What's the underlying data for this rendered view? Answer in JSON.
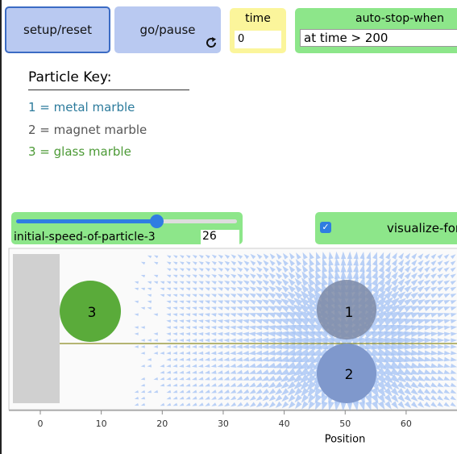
{
  "buttons": {
    "setup": "setup/reset",
    "go": "go/pause"
  },
  "time_monitor": {
    "label": "time",
    "value": "0"
  },
  "auto_stop": {
    "label": "auto-stop-when",
    "value": "at time > 200"
  },
  "particle_key": {
    "title": "Particle Key:",
    "items": [
      "1 = metal marble",
      "2 = magnet marble",
      "3 = glass marble"
    ]
  },
  "slider": {
    "label": "initial-speed-of-particle-3",
    "value": "26"
  },
  "switch": {
    "label": "visualize-forces"
  },
  "world": {
    "particles": [
      "1",
      "2",
      "3"
    ],
    "axis": {
      "ticks": [
        0,
        10,
        20,
        30,
        40,
        50,
        60
      ],
      "label": "Position"
    }
  }
}
